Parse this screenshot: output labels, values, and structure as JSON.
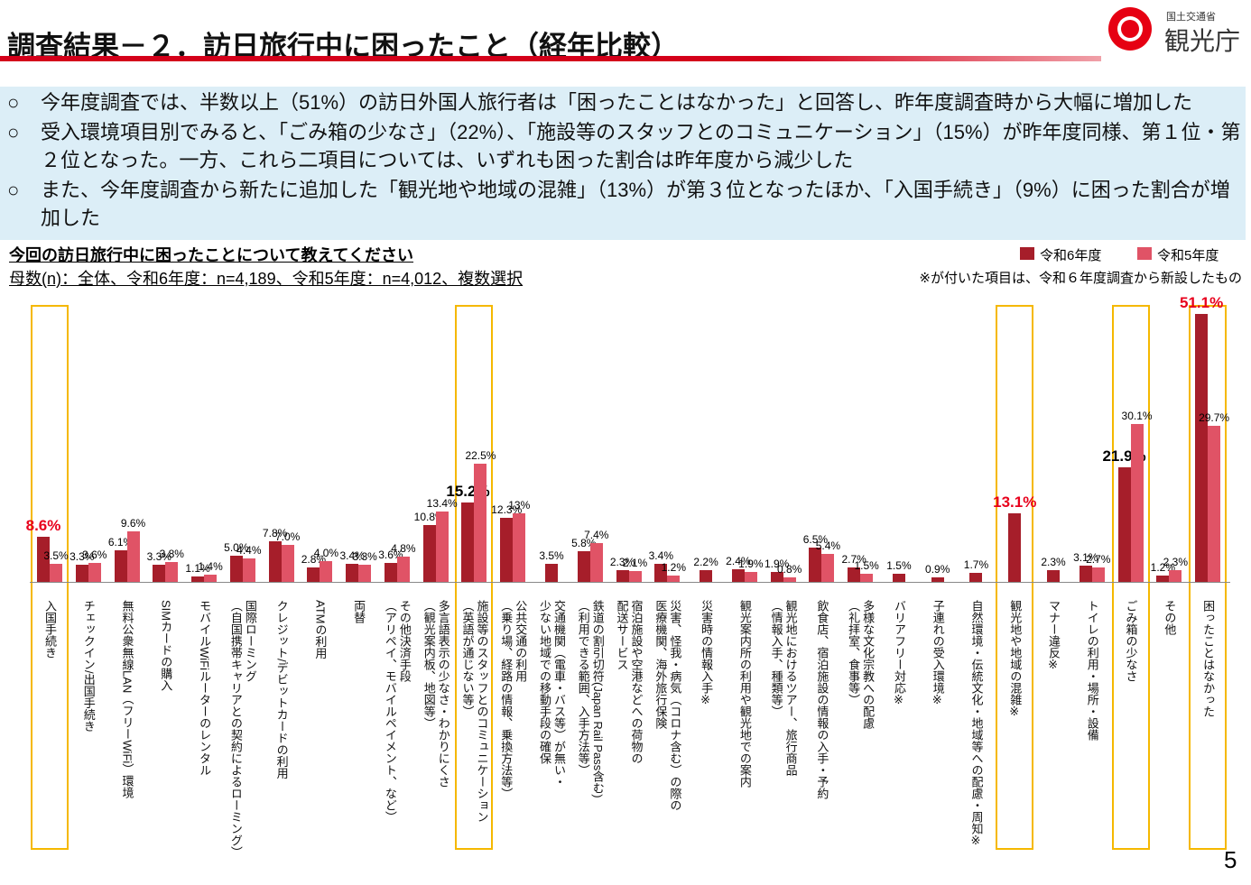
{
  "header": {
    "title": "調査結果－２．訪日旅行中に困ったこと（経年比較）",
    "logo_ministry": "国土交通省",
    "logo_agency": "観光庁"
  },
  "bullets": [
    "今年度調査では、半数以上（51%）の訪日外国人旅行者は「困ったことはなかった」と回答し、昨年度調査時から大幅に増加した",
    "受入環境項目別でみると、「ごみ箱の少なさ」（22%）、「施設等のスタッフとのコミュニケーション」（15%）が昨年度同様、第１位・第２位となった。一方、これら二項目については、いずれも困った割合は昨年度から減少した",
    "また、今年度調査から新たに追加した「観光地や地域の混雑」（13%）が第３位となったほか、「入国手続き」（9%）に困った割合が増加した"
  ],
  "question": "今回の訪日旅行中に困ったことについて教えてください",
  "sample": "母数(n)：全体、令和6年度：n=4,189、令和5年度：n=4,012、複数選択",
  "note": "※が付いた項目は、令和６年度調査から新設したもの",
  "page_number": "5",
  "chart_data": {
    "type": "bar",
    "categories": [
      "入国手続き",
      "チェックイン/出国手続き",
      "無料公衆無線LAN（フリーWiFi）環境",
      "SIMカードの購入",
      "モバイルWiFiルーターのレンタル",
      "国際ローミング\n（自国携帯キャリアとの契約によるローミング）",
      "クレジット/デビットカードの利用",
      "ATMの利用",
      "両替",
      "その他決済手段\n（アリペイ、モバイルペイメント、など）",
      "多言語表示の少なさ・わかりにくさ\n（観光案内板、地図等）",
      "施設等のスタッフとのコミュニケーション\n（英語が通じない等）",
      "公共交通の利用\n（乗り場、経路の情報、乗換方法等）",
      "交通機関（電車・バス等）が無い・\n少ない地域での移動手段の確保",
      "鉄道の割引切符(Japan Rail Pass含む)\n（利用できる範囲、入手方法等）",
      "宿泊施設や空港などへの荷物の\n配送サービス",
      "災害、怪我・病気（コロナ含む）の際の\n医療機関、海外旅行保険",
      "災害時の情報入手※",
      "観光案内所の利用や観光地での案内",
      "観光地におけるツアー、旅行商品\n（情報入手、種類等）",
      "飲食店、宿泊施設の情報の入手・予約",
      "多様な文化宗教への配慮\n（礼拝室、食事等）",
      "バリアフリー対応※",
      "子連れの受入環境※",
      "自然環境・伝統文化・地域等への配慮・周知※",
      "観光地や地域の混雑※",
      "マナー違反※",
      "トイレの利用・場所・設備",
      "ごみ箱の少なさ",
      "その他",
      "困ったことはなかった"
    ],
    "series": [
      {
        "name": "令和6年度",
        "color": "#a61e2a",
        "values": [
          8.6,
          3.3,
          6.1,
          3.3,
          1.1,
          5.0,
          7.8,
          2.8,
          3.4,
          3.6,
          10.8,
          15.2,
          12.3,
          3.5,
          5.8,
          2.3,
          3.4,
          2.2,
          2.4,
          1.9,
          6.5,
          2.7,
          1.5,
          0.9,
          1.7,
          13.1,
          2.3,
          3.1,
          21.9,
          1.2,
          51.1
        ],
        "value_labels": [
          "8.6%",
          "3.3%",
          "6.1%",
          "3.3%",
          "1.1%",
          "5.0%",
          "7.8%",
          "2.8%",
          "3.4%",
          "3.6%",
          "10.8%",
          "15.2%",
          "12.3%",
          "3.5%",
          "5.8%",
          "2.3%",
          "3.4%",
          "2.2%",
          "2.4%",
          "1.9%",
          "6.5%",
          "2.7%",
          "1.5%",
          "0.9%",
          "1.7%",
          "13.1%",
          "2.3%",
          "3.1%",
          "21.9%",
          "1.2%",
          "51.1%"
        ]
      },
      {
        "name": "令和5年度",
        "color": "#e05366",
        "values": [
          3.5,
          3.6,
          9.6,
          3.8,
          1.4,
          4.4,
          7.0,
          4.0,
          3.3,
          4.8,
          13.4,
          22.5,
          13,
          null,
          7.4,
          2.1,
          1.2,
          null,
          1.9,
          0.8,
          5.4,
          1.5,
          null,
          null,
          null,
          null,
          null,
          2.7,
          30.1,
          2.3,
          29.7
        ],
        "value_labels": [
          "3.5%",
          "3.6%",
          "9.6%",
          "3.8%",
          "1.4%",
          "4.4%",
          "7.0%",
          "4.0%",
          "3.3%",
          "4.8%",
          "13.4%",
          "22.5%",
          "13%",
          null,
          "7.4%",
          "2.1%",
          "1.2%",
          null,
          "1.9%",
          "0.8%",
          "5.4%",
          "1.5%",
          null,
          null,
          null,
          null,
          null,
          "2.7%",
          "30.1%",
          "2.3%",
          "29.7%"
        ]
      }
    ],
    "highlight": [
      0,
      11,
      25,
      28,
      30
    ],
    "highlight_label_colors": [
      "#e8001c",
      "#000000",
      "#e8001c",
      "#000000",
      "#e8001c"
    ]
  }
}
